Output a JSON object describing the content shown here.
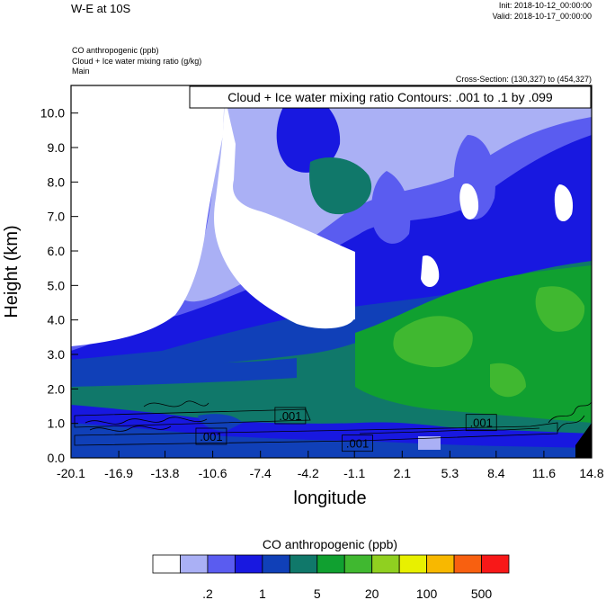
{
  "header": {
    "title": "W-E at 10S",
    "init": "Init: 2018-10-12_00:00:00",
    "valid": "Valid: 2018-10-17_00:00:00",
    "field_lines": [
      "CO anthropogenic   (ppb)",
      "Cloud + Ice water mixing ratio   (g/kg)",
      "Main"
    ],
    "cross_section": "Cross-Section: (130,327) to (454,327)"
  },
  "chart_data": {
    "type": "heatmap",
    "title": "Cloud + Ice water mixing ratio Contours: .001 to .1 by .099",
    "xlabel": "longitude",
    "ylabel": "Height (km)",
    "xlim": [
      -20.1,
      14.8
    ],
    "ylim": [
      0.0,
      10.8
    ],
    "x_ticks": [
      "-20.1",
      "-16.9",
      "-13.8",
      "-10.6",
      "-7.4",
      "-4.2",
      "-1.1",
      "2.1",
      "5.3",
      "8.4",
      "11.6",
      "14.8"
    ],
    "y_ticks": [
      "0.0",
      "1.0",
      "2.0",
      "3.0",
      "4.0",
      "5.0",
      "6.0",
      "7.0",
      "8.0",
      "9.0",
      "10.0"
    ],
    "contour_labels": [
      {
        "text": ".001",
        "lon": -5.4,
        "h": 1.2
      },
      {
        "text": ".001",
        "lon": -10.7,
        "h": 0.6
      },
      {
        "text": ".001",
        "lon": -0.9,
        "h": 0.4
      },
      {
        "text": ".001",
        "lon": 7.4,
        "h": 1.0
      }
    ],
    "colorbar": {
      "title": "CO anthropogenic  (ppb)",
      "colors": [
        "#ffffff",
        "#aab0f5",
        "#5a5cf0",
        "#1818e0",
        "#1040b8",
        "#10786a",
        "#10a030",
        "#40b830",
        "#90d020",
        "#e8f000",
        "#f8b800",
        "#f86010",
        "#f81818"
      ],
      "labels": [
        ".2",
        "1",
        "5",
        "20",
        "100",
        "500"
      ]
    }
  }
}
